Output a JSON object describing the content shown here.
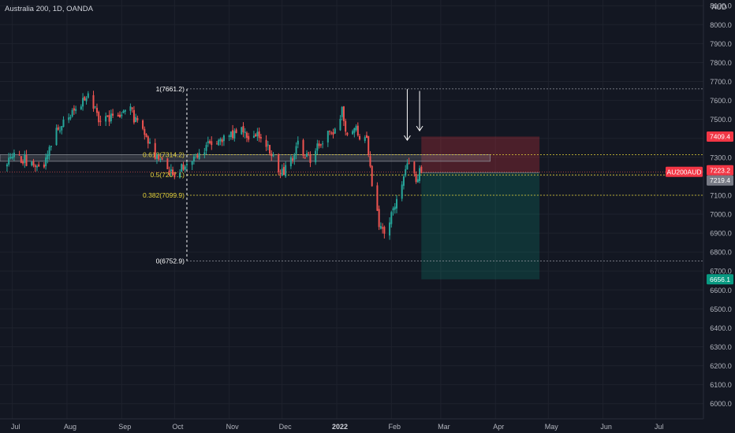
{
  "symbol_title": "Australia 200, 1D, OANDA",
  "currency": "AUD",
  "colors": {
    "background": "#131722",
    "grid": "#1e222d",
    "text": "#b2b5be",
    "up": "#26a69a",
    "down": "#ef5350",
    "fib_line": "#787b86",
    "fib_yellow": "#e8d53a",
    "stop_zone": "rgba(242,54,69,0.25)",
    "target_zone": "rgba(8,153,129,0.22)"
  },
  "chart_data": {
    "type": "candlestick",
    "title": "Australia 200, 1D, OANDA",
    "ylim": [
      5920,
      8130
    ],
    "y_ticks": [
      6000,
      6100,
      6200,
      6300,
      6400,
      6500,
      6600,
      6700,
      6800,
      6900,
      7000,
      7100,
      7200,
      7300,
      7400,
      7500,
      7600,
      7700,
      7800,
      7900,
      8000,
      8100
    ],
    "x_ticks": [
      {
        "label": "Jul",
        "bold": false
      },
      {
        "label": "Aug",
        "bold": false
      },
      {
        "label": "Sep",
        "bold": false
      },
      {
        "label": "Oct",
        "bold": false
      },
      {
        "label": "Nov",
        "bold": false
      },
      {
        "label": "Dec",
        "bold": false
      },
      {
        "label": "2022",
        "bold": true
      },
      {
        "label": "Feb",
        "bold": false
      },
      {
        "label": "Mar",
        "bold": false
      },
      {
        "label": "Apr",
        "bold": false
      },
      {
        "label": "May",
        "bold": false
      },
      {
        "label": "Jun",
        "bold": false
      },
      {
        "label": "Jul",
        "bold": false
      }
    ],
    "price_path": [
      [
        "2021-06-28",
        7290
      ],
      [
        "2021-07-05",
        7300
      ],
      [
        "2021-07-12",
        7270
      ],
      [
        "2021-07-19",
        7270
      ],
      [
        "2021-07-26",
        7450
      ],
      [
        "2021-08-02",
        7500
      ],
      [
        "2021-08-09",
        7590
      ],
      [
        "2021-08-13",
        7640
      ],
      [
        "2021-08-20",
        7480
      ],
      [
        "2021-08-27",
        7510
      ],
      [
        "2021-09-06",
        7540
      ],
      [
        "2021-09-13",
        7440
      ],
      [
        "2021-09-20",
        7300
      ],
      [
        "2021-09-27",
        7260
      ],
      [
        "2021-10-01",
        7200
      ],
      [
        "2021-10-08",
        7270
      ],
      [
        "2021-10-15",
        7330
      ],
      [
        "2021-10-22",
        7390
      ],
      [
        "2021-10-29",
        7400
      ],
      [
        "2021-11-05",
        7440
      ],
      [
        "2021-11-12",
        7420
      ],
      [
        "2021-11-19",
        7420
      ],
      [
        "2021-11-26",
        7300
      ],
      [
        "2021-11-30",
        7210
      ],
      [
        "2021-12-03",
        7250
      ],
      [
        "2021-12-10",
        7360
      ],
      [
        "2021-12-17",
        7300
      ],
      [
        "2021-12-24",
        7390
      ],
      [
        "2021-12-31",
        7450
      ],
      [
        "2022-01-04",
        7550
      ],
      [
        "2022-01-07",
        7420
      ],
      [
        "2022-01-12",
        7440
      ],
      [
        "2022-01-18",
        7380
      ],
      [
        "2022-01-21",
        7170
      ],
      [
        "2022-01-25",
        6940
      ],
      [
        "2022-01-28",
        6900
      ],
      [
        "2022-02-03",
        7050
      ],
      [
        "2022-02-09",
        7210
      ],
      [
        "2022-02-11",
        7290
      ],
      [
        "2022-02-15",
        7190
      ],
      [
        "2022-02-18",
        7230
      ]
    ],
    "fibonacci": [
      {
        "label": "1(7661.2)",
        "value": 7661.2
      },
      {
        "label": "0.618(7314.2)",
        "value": 7314.2
      },
      {
        "label": "0.5(7207.1)",
        "value": 7207.1
      },
      {
        "label": "0.382(7099.9)",
        "value": 7099.9
      },
      {
        "label": "0(6752.9)",
        "value": 6752.9
      }
    ],
    "resistance_zone": [
      7279,
      7314
    ],
    "position": {
      "direction": "short",
      "entry": 7219.4,
      "stop": 7409.4,
      "target": 6656.1,
      "start": "2022-02-18",
      "end": "2022-04-26"
    },
    "arrows": [
      {
        "date": "2022-02-10",
        "from": 7660,
        "to": 7390
      },
      {
        "date": "2022-02-17",
        "from": 7650,
        "to": 7440
      }
    ],
    "vertical_line": "2021-10-08",
    "price_labels": [
      {
        "text": "7409.4",
        "value": 7409.4,
        "kind": "stop"
      },
      {
        "text": "AU200AUD",
        "value": 7223.2,
        "kind": "symbol"
      },
      {
        "text": "7223.2",
        "value": 7223.2,
        "kind": "last"
      },
      {
        "text": "7219.4",
        "value": 7219.4,
        "kind": "entry"
      },
      {
        "text": "6656.1",
        "value": 6656.1,
        "kind": "target"
      }
    ]
  }
}
